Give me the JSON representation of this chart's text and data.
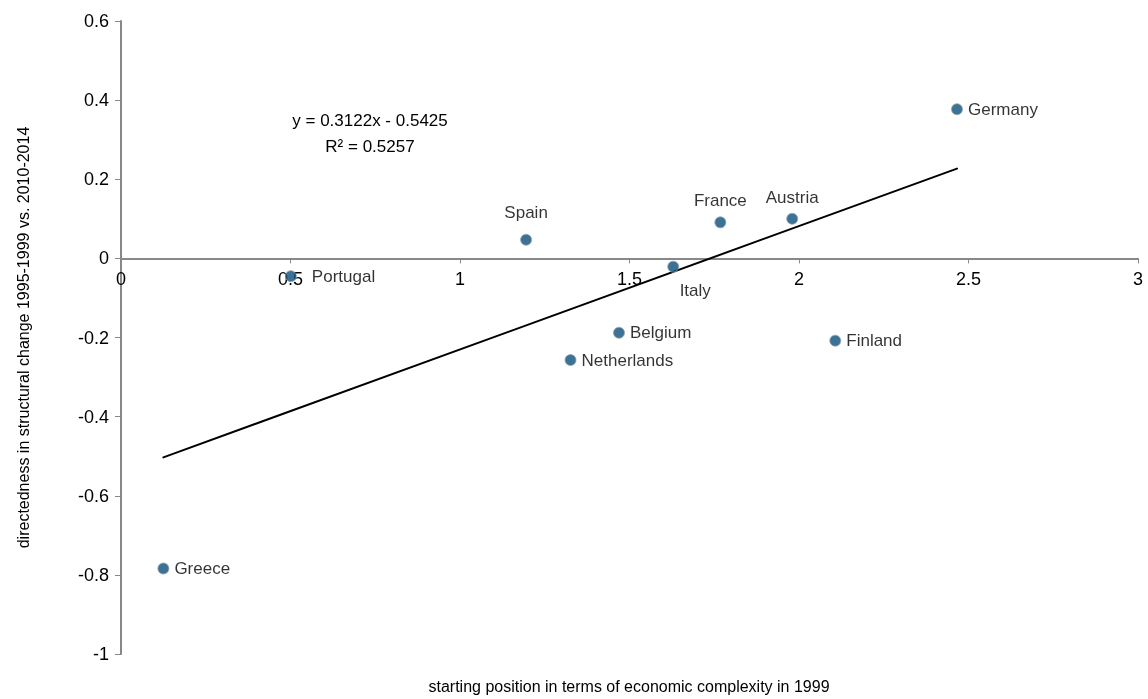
{
  "chart_data": {
    "type": "scatter",
    "xlabel": "starting position in terms of economic complexity in 1999",
    "ylabel": "directedness in structural change 1995-1999 vs. 2010-2014",
    "series": [
      {
        "color": "#0b4f7c",
        "x": [
          0.125,
          0.501,
          1.195,
          1.326,
          1.469,
          1.629,
          1.768,
          1.98,
          2.107,
          2.466
        ],
        "values": [
          -0.784,
          -0.045,
          0.047,
          -0.257,
          -0.188,
          -0.021,
          0.091,
          0.1,
          -0.208,
          0.377
        ]
      },
      {
        "type": "line",
        "marker": "none",
        "color": "#000000",
        "x": [
          0.125,
          2.466
        ],
        "values": [
          -0.503,
          0.227
        ]
      }
    ],
    "annotations": [
      {
        "text": "Greece",
        "x": 0.125,
        "y": -0.784
      },
      {
        "text": "Portugal",
        "x": 0.501,
        "y": -0.045
      },
      {
        "text": "Spain",
        "x": 1.195,
        "y": 0.047
      },
      {
        "text": "Netherlands",
        "x": 1.326,
        "y": -0.257
      },
      {
        "text": "Belgium",
        "x": 1.469,
        "y": -0.188
      },
      {
        "text": "Italy",
        "x": 1.629,
        "y": -0.021
      },
      {
        "text": "France",
        "x": 1.768,
        "y": 0.091
      },
      {
        "text": "Austria",
        "x": 1.98,
        "y": 0.1
      },
      {
        "text": "Finland",
        "x": 2.107,
        "y": -0.208
      },
      {
        "text": "Germany",
        "x": 2.466,
        "y": 0.377
      },
      "y = 0.3122x - 0.5425",
      "R² = 0.5257"
    ],
    "xlim": [
      0,
      3
    ],
    "xticks": [
      0,
      0.5,
      1,
      1.5,
      2,
      2.5,
      3
    ],
    "ylim": [
      -1,
      0.6
    ],
    "yticks": [
      -1,
      -0.8,
      -0.6,
      -0.4,
      -0.2,
      0,
      0.2,
      0.4,
      0.6
    ],
    "grid": false,
    "marker": "circle",
    "line_style": "solid"
  }
}
